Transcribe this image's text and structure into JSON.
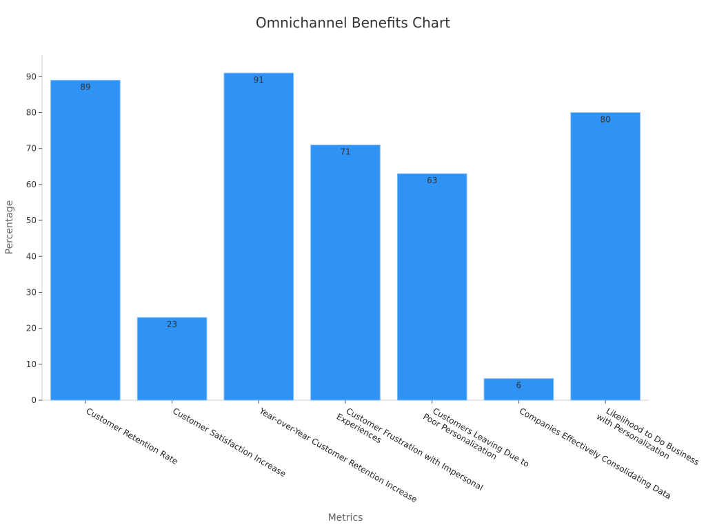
{
  "chart_data": {
    "type": "bar",
    "title": "Omnichannel Benefits Chart",
    "xlabel": "Metrics",
    "ylabel": "Percentage",
    "categories": [
      [
        "Customer Retention Rate"
      ],
      [
        "Customer Satisfaction Increase"
      ],
      [
        "Year-over-Year Customer Retention Increase"
      ],
      [
        "Customer Frustration with Impersonal",
        "Experiences"
      ],
      [
        "Customers Leaving Due to",
        "Poor Personalization"
      ],
      [
        "Companies Effectively Consolidating Data"
      ],
      [
        "Likelihood to Do Business",
        "with Personalization"
      ]
    ],
    "values": [
      89,
      23,
      91,
      71,
      63,
      6,
      80
    ],
    "ylim": [
      0,
      96
    ],
    "yticks": [
      0,
      10,
      20,
      30,
      40,
      50,
      60,
      70,
      80,
      90
    ],
    "grid": false,
    "colors": {
      "bar": "#2e93f5",
      "bar_edge": "#7fbaf7",
      "axis": "#cccccc"
    }
  }
}
